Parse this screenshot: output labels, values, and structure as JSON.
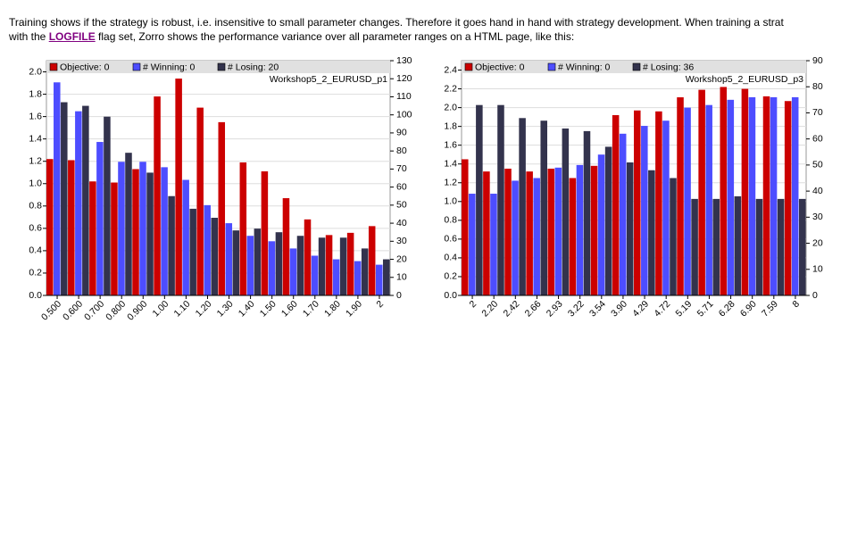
{
  "text": {
    "line1": "Training shows if the strategy is robust, i.e. insensitive to small parameter changes. Therefore it goes hand in hand with strategy development. When training a strat",
    "line2_before": "with the",
    "link": "LOGFILE",
    "line2_after": "flag set, Zorro shows the performance variance over all parameter ranges on a HTML page, like this:"
  },
  "chart_data": [
    {
      "type": "bar",
      "title": "Workshop5_2_EURUSD_p1",
      "categories": [
        "0.500",
        "0.600",
        "0.700",
        "0.800",
        "0.900",
        "1.00",
        "1.10",
        "1.20",
        "1.30",
        "1.40",
        "1.50",
        "1.60",
        "1.70",
        "1.80",
        "1.90",
        "2"
      ],
      "series": [
        {
          "name": "Objective: 0",
          "color": "#cc0000",
          "values": [
            1.22,
            1.21,
            1.02,
            1.01,
            1.13,
            1.78,
            1.94,
            1.68,
            1.55,
            1.19,
            1.11,
            0.87,
            0.68,
            0.54,
            0.56,
            0.62
          ]
        },
        {
          "name": "# Winning: 0",
          "color": "#4d4dff",
          "axis": "y2",
          "values": [
            118,
            102,
            85,
            74,
            74,
            71,
            64,
            50,
            40,
            33,
            30,
            26,
            22,
            20,
            19,
            17
          ]
        },
        {
          "name": "# Losing: 20",
          "color": "#33334d",
          "axis": "y2",
          "values": [
            107,
            105,
            99,
            79,
            68,
            55,
            48,
            43,
            36,
            37,
            35,
            33,
            32,
            32,
            26,
            20
          ]
        }
      ],
      "ylim": [
        0,
        2.1
      ],
      "yticks": [
        {
          "value": 0,
          "label": "0.0"
        },
        {
          "value": 0.2,
          "label": "0.2"
        },
        {
          "value": 0.4,
          "label": "0.4"
        },
        {
          "value": 0.6,
          "label": "0.6"
        },
        {
          "value": 0.8,
          "label": "0.8"
        },
        {
          "value": 1,
          "label": "1.0"
        },
        {
          "value": 1.2,
          "label": "1.2"
        },
        {
          "value": 1.4,
          "label": "1.4"
        },
        {
          "value": 1.6,
          "label": "1.6"
        },
        {
          "value": 1.8,
          "label": "1.8"
        },
        {
          "value": 2,
          "label": "2.0"
        }
      ],
      "y2lim": [
        0,
        130
      ],
      "y2ticks": [
        0,
        10,
        20,
        30,
        40,
        50,
        60,
        70,
        80,
        90,
        100,
        110,
        120,
        130
      ],
      "grid": true
    },
    {
      "type": "bar",
      "title": "Workshop5_2_EURUSD_p3",
      "categories": [
        "2",
        "2.20",
        "2.42",
        "2.66",
        "2.93",
        "3.22",
        "3.54",
        "3.90",
        "4.29",
        "4.72",
        "5.19",
        "5.71",
        "6.28",
        "6.90",
        "7.59",
        "8"
      ],
      "series": [
        {
          "name": "Objective: 0",
          "color": "#cc0000",
          "values": [
            1.45,
            1.32,
            1.35,
            1.32,
            1.35,
            1.25,
            1.38,
            1.92,
            1.97,
            1.96,
            2.11,
            2.19,
            2.22,
            2.2,
            2.12,
            2.07
          ]
        },
        {
          "name": "# Winning: 0",
          "color": "#4d4dff",
          "axis": "y2",
          "values": [
            39,
            39,
            44,
            45,
            49,
            50,
            54,
            62,
            65,
            67,
            72,
            73,
            75,
            76,
            76,
            76
          ]
        },
        {
          "name": "# Losing: 36",
          "color": "#33334d",
          "axis": "y2",
          "values": [
            73,
            73,
            68,
            67,
            64,
            63,
            57,
            51,
            48,
            45,
            37,
            37,
            38,
            37,
            37,
            37
          ]
        }
      ],
      "ylim": [
        0,
        2.5
      ],
      "yticks": [
        {
          "value": 0,
          "label": "0.0"
        },
        {
          "value": 0.2,
          "label": "0.2"
        },
        {
          "value": 0.4,
          "label": "0.4"
        },
        {
          "value": 0.6,
          "label": "0.6"
        },
        {
          "value": 0.8,
          "label": "0.8"
        },
        {
          "value": 1,
          "label": "1.0"
        },
        {
          "value": 1.2,
          "label": "1.2"
        },
        {
          "value": 1.4,
          "label": "1.4"
        },
        {
          "value": 1.6,
          "label": "1.6"
        },
        {
          "value": 1.8,
          "label": "1.8"
        },
        {
          "value": 2,
          "label": "2.0"
        },
        {
          "value": 2.2,
          "label": "2.2"
        },
        {
          "value": 2.4,
          "label": "2.4"
        }
      ],
      "y2lim": [
        0,
        90
      ],
      "y2ticks": [
        0,
        10,
        20,
        30,
        40,
        50,
        60,
        70,
        80,
        90
      ],
      "grid": true
    }
  ]
}
